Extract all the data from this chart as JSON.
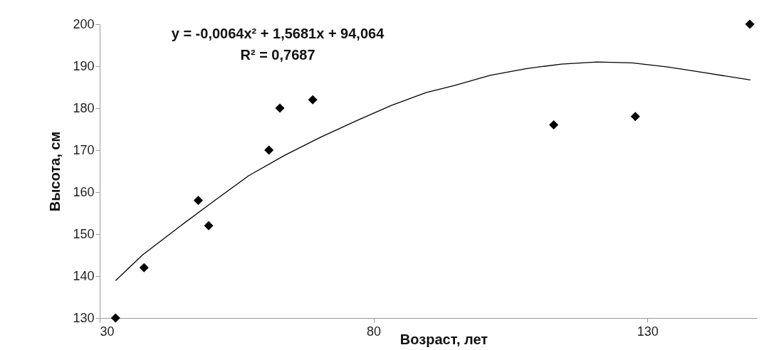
{
  "chart_data": {
    "type": "scatter",
    "xlabel": "Возраст, лет",
    "ylabel": "Высота, см",
    "xlim": [
      30,
      150
    ],
    "xticks": [
      30,
      80,
      130
    ],
    "ylim": [
      130,
      200
    ],
    "yticks": [
      130,
      140,
      150,
      160,
      170,
      180,
      190,
      200
    ],
    "grid": false,
    "annotations": [
      "y = -0,0064x² + 1,5681x + 94,064",
      "R² = 0,7687"
    ],
    "series": [
      {
        "marker": "diamond",
        "color": "#000000",
        "x": [
          32.9,
          38.1,
          48.0,
          49.9,
          60.9,
          62.9,
          68.9,
          112.9,
          127.8,
          148.7
        ],
        "values": [
          130,
          142,
          158,
          152,
          170,
          180,
          182,
          176,
          178,
          200
        ]
      },
      {
        "type": "line",
        "color": "#000000",
        "line_style": "solid",
        "x": [
          32.9,
          37.8,
          44.3,
          50.7,
          57.2,
          63.7,
          70.2,
          76.7,
          83.2,
          89.6,
          94.8,
          101.3,
          107.8,
          114.3,
          120.8,
          127.2,
          133.7,
          140.2,
          148.8
        ],
        "values": [
          138.9,
          145.0,
          151.5,
          157.7,
          163.9,
          168.7,
          173.0,
          176.9,
          180.6,
          183.7,
          185.4,
          187.8,
          189.4,
          190.5,
          191.0,
          190.8,
          189.8,
          188.5,
          186.7
        ]
      }
    ]
  }
}
